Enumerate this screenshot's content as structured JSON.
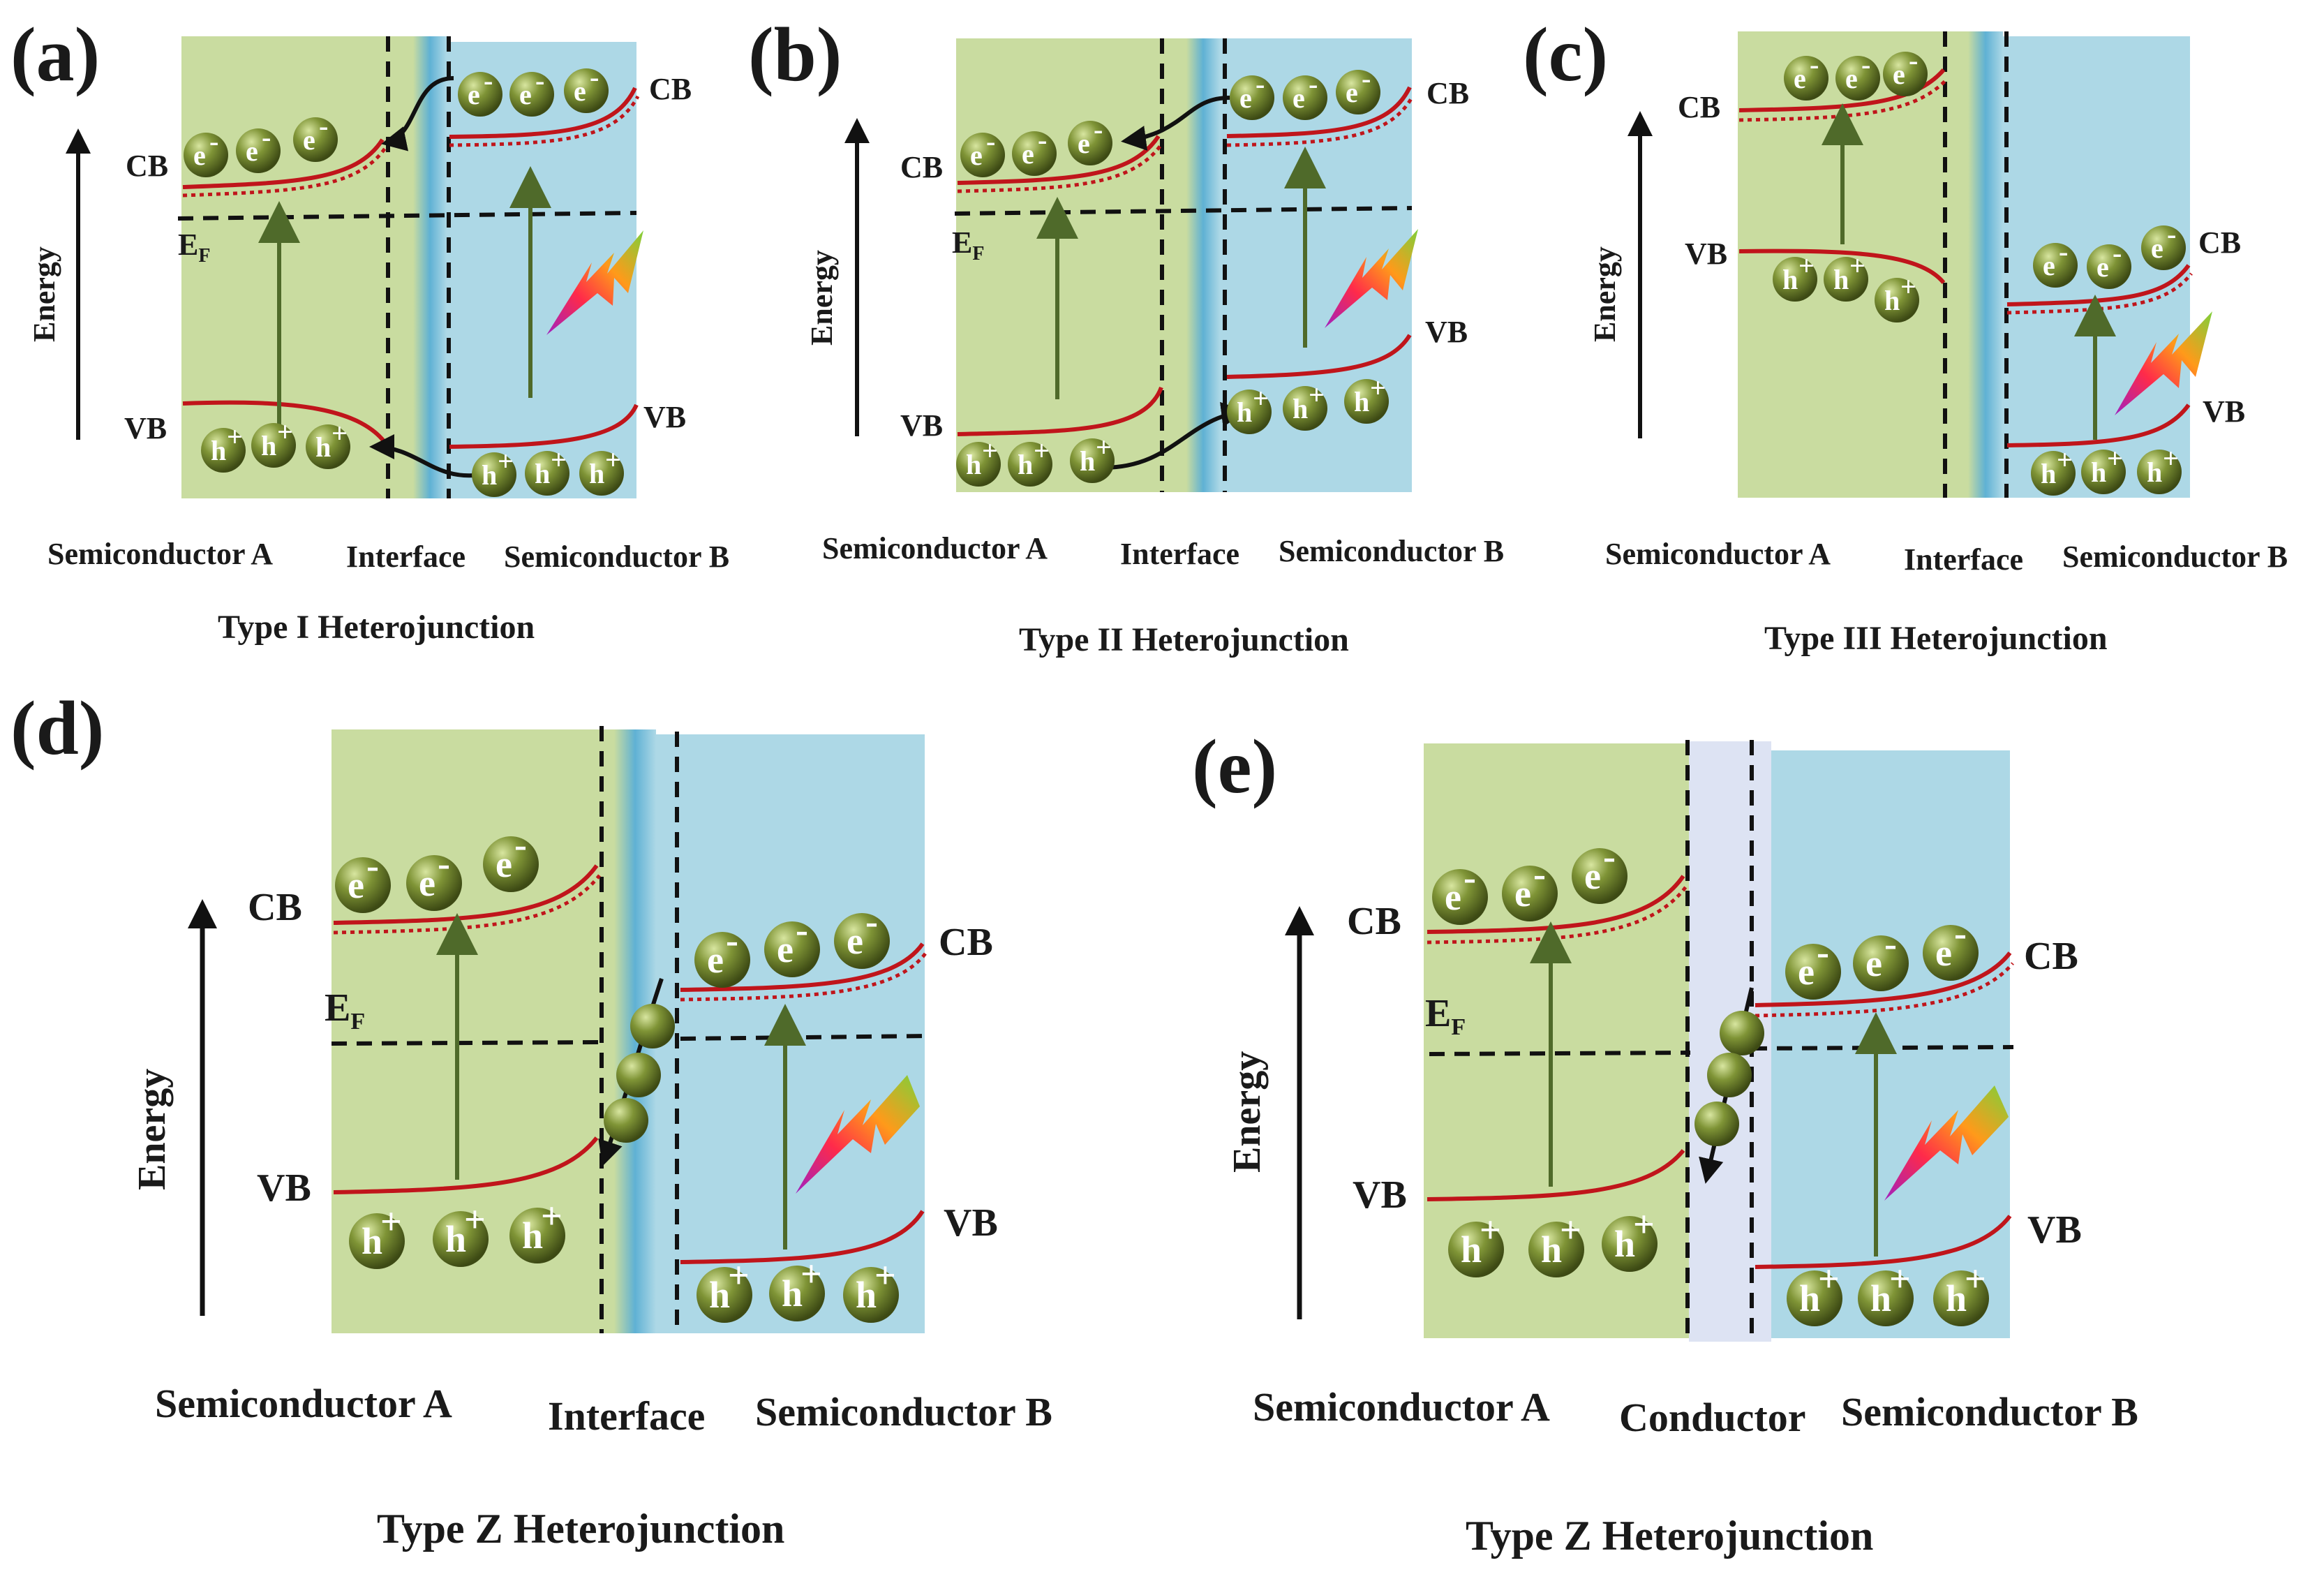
{
  "panels": {
    "a": {
      "label": "(a)",
      "title": "Type I Heterojunction",
      "axis_label": "Energy",
      "cb": "CB",
      "vb": "VB",
      "fermi": "E",
      "fermi_sub": "F",
      "cb_right": "CB",
      "vb_right": "VB",
      "region_left": "Semiconductor A",
      "region_mid": "Interface",
      "region_right": "Semiconductor B"
    },
    "b": {
      "label": "(b)",
      "title": "Type II Heterojunction",
      "axis_label": "Energy",
      "cb": "CB",
      "vb": "VB",
      "fermi": "E",
      "fermi_sub": "F",
      "cb_right": "CB",
      "vb_right": "VB",
      "region_left": "Semiconductor A",
      "region_mid": "Interface",
      "region_right": "Semiconductor B"
    },
    "c": {
      "label": "(c)",
      "title": "Type III Heterojunction",
      "axis_label": "Energy",
      "cb": "CB",
      "vb": "VB",
      "cb_right": "CB",
      "vb_right": "VB",
      "region_left": "Semiconductor A",
      "region_mid": "Interface",
      "region_right": "Semiconductor B"
    },
    "d": {
      "label": "(d)",
      "title": "Type Z Heterojunction",
      "axis_label": "Energy",
      "cb": "CB",
      "vb": "VB",
      "fermi": "E",
      "fermi_sub": "F",
      "cb_right": "CB",
      "vb_right": "VB",
      "region_left": "Semiconductor A",
      "region_mid": "Interface",
      "region_right": "Semiconductor B"
    },
    "e": {
      "label": "(e)",
      "title": "Type Z Heterojunction",
      "axis_label": "Energy",
      "cb": "CB",
      "vb": "VB",
      "fermi": "E",
      "fermi_sub": "F",
      "cb_right": "CB",
      "vb_right": "VB",
      "region_left": "Semiconductor A",
      "region_mid": "Conductor",
      "region_right": "Semiconductor B"
    }
  },
  "carriers": {
    "electron": "e",
    "electron_sup": "-",
    "hole": "h",
    "hole_sup": "+"
  },
  "colors": {
    "semiconductor_a": "#c9dca0",
    "semiconductor_b": "#add8e6",
    "interface": "#6fb6d3",
    "conductor": "#dde3f3",
    "band_line": "#c0151b",
    "excitation_arrow": "#4f6a2a",
    "carrier_ball": "#6b7d2e"
  }
}
